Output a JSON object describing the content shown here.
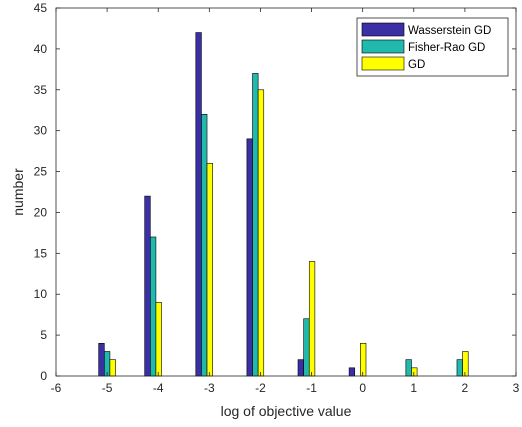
{
  "chart_data": {
    "type": "bar",
    "xlabel": "log of objective value",
    "ylabel": "number",
    "xlim": [
      -6,
      3
    ],
    "ylim": [
      0,
      45
    ],
    "xticks": [
      -6,
      -5,
      -4,
      -3,
      -2,
      -1,
      0,
      1,
      2,
      3
    ],
    "yticks": [
      0,
      5,
      10,
      15,
      20,
      25,
      30,
      35,
      40,
      45
    ],
    "grid": false,
    "legend_position": "top-right",
    "bin_centers": [
      -5.0,
      -4.1,
      -3.1,
      -2.1,
      -1.1,
      -0.1,
      0.9,
      1.9
    ],
    "series": [
      {
        "name": "Wasserstein GD",
        "color": "#3b2fa6",
        "values": [
          4,
          22,
          42,
          29,
          2,
          1,
          0,
          0
        ]
      },
      {
        "name": "Fisher-Rao GD",
        "color": "#21b8ad",
        "values": [
          3,
          17,
          32,
          37,
          7,
          0,
          2,
          2
        ]
      },
      {
        "name": "GD",
        "color": "#ffff00",
        "values": [
          2,
          9,
          26,
          35,
          14,
          4,
          1,
          3
        ]
      }
    ]
  }
}
